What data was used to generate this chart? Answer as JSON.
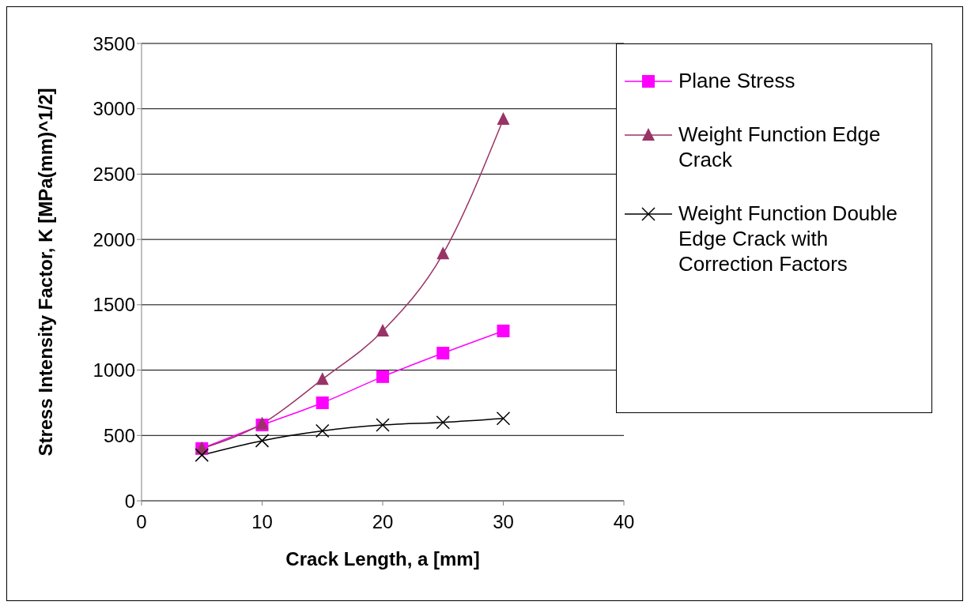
{
  "chart_data": {
    "type": "line",
    "xlabel": "Crack Length, a [mm]",
    "ylabel": "Stress Intensity Factor, K [MPa(mm)^1/2]",
    "x": [
      5,
      10,
      15,
      20,
      25,
      30
    ],
    "series": [
      {
        "name": "Plane Stress",
        "color": "#ff00ff",
        "marker": "square",
        "values": [
          400,
          580,
          750,
          950,
          1130,
          1300
        ]
      },
      {
        "name": "Weight Function Edge Crack",
        "color": "#993366",
        "marker": "triangle",
        "values": [
          400,
          590,
          930,
          1300,
          1890,
          2920
        ]
      },
      {
        "name": "Weight Function Double Edge Crack with Correction Factors",
        "color": "#000000",
        "marker": "cross",
        "values": [
          350,
          460,
          535,
          580,
          600,
          630
        ]
      }
    ],
    "xlim": [
      0,
      40
    ],
    "xticks": [
      0,
      10,
      20,
      30,
      40
    ],
    "ylim": [
      0,
      3500
    ],
    "yticks": [
      0,
      500,
      1000,
      1500,
      2000,
      2500,
      3000,
      3500
    ],
    "grid": "y",
    "legend": "right"
  }
}
